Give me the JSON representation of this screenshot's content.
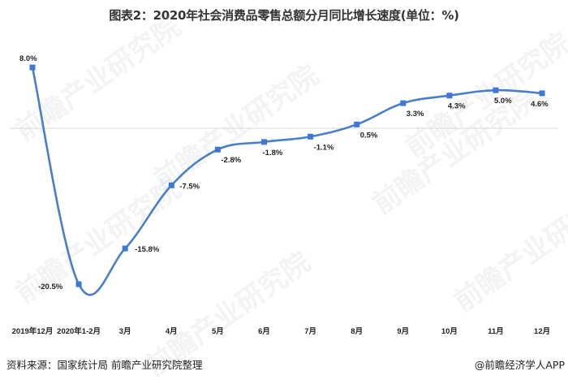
{
  "title": "图表2：2020年社会消费品零售总额分月同比增长速度(单位：%)",
  "footer": {
    "source": "资料来源：国家统计局 前瞻产业研究院整理",
    "brand": "@前瞻经济学人APP"
  },
  "watermark": "前瞻产业研究院",
  "colors": {
    "line": "#4a7fc4",
    "marker": "#3d78d8",
    "baseline": "#d9d9d9"
  },
  "chart_data": {
    "type": "line",
    "title": "图表2：2020年社会消费品零售总额分月同比增长速度(单位：%)",
    "xlabel": "",
    "ylabel": "%",
    "categories": [
      "2019年12月",
      "2020年1-2月",
      "3月",
      "4月",
      "5月",
      "6月",
      "7月",
      "8月",
      "9月",
      "10月",
      "11月",
      "12月"
    ],
    "values": [
      8.0,
      -20.5,
      -15.8,
      -7.5,
      -2.8,
      -1.8,
      -1.1,
      0.5,
      3.3,
      4.3,
      5.0,
      4.6
    ],
    "labels": [
      "8.0%",
      "-20.5%",
      "-15.8%",
      "-7.5%",
      "-2.8%",
      "-1.8%",
      "-1.1%",
      "0.5%",
      "3.3%",
      "4.3%",
      "5.0%",
      "4.6%"
    ],
    "ylim": [
      -22,
      9
    ],
    "grid": false,
    "legend": "none",
    "smooth": true
  }
}
